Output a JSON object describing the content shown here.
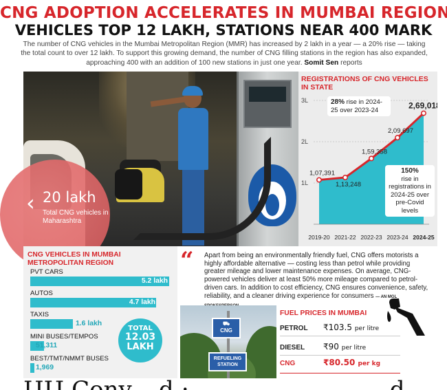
{
  "header": {
    "headline": "CNG ADOPTION ACCELERATES IN MUMBAI REGION",
    "subhead": "VEHICLES TOP 12 LAKH, STATIONS NEAR 400 MARK",
    "intro": "The number of CNG vehicles in the Mumbai Metropolitan Region (MMR) has increased by 2 lakh in a year — a 20% rise — taking the total count to over 12 lakh. To support this growing demand, the number of CNG filling stations in the region has also expanded, approaching 400 with an addition of 100 new stations in just one year.",
    "byline": "Somit Sen",
    "byline_suffix": "reports"
  },
  "stat": {
    "value": "20 lakh",
    "caption": "Total CNG vehicles in Maharashtra"
  },
  "chart_title": "REGISTRATIONS OF CNG VEHICLES IN STATE",
  "chart_data": {
    "type": "area",
    "title": "REGISTRATIONS OF CNG VEHICLES IN STATE",
    "categories": [
      "2019-20",
      "2021-22",
      "2022-23",
      "2023-24",
      "2024-25"
    ],
    "values": [
      107391,
      113248,
      159358,
      209697,
      269018
    ],
    "value_labels": [
      "1,07,391",
      "1,13,248",
      "1,59,358",
      "2,09,697",
      "2,69,018"
    ],
    "yticks": [
      "1L",
      "2L",
      "3L"
    ],
    "ylim": [
      0,
      300000
    ],
    "colors": {
      "line": "#d7262b",
      "area": "#2fbccc"
    }
  },
  "callouts": {
    "rise_pct": "28%",
    "rise_text": "rise in 2024-25 over 2023-24",
    "covid_pct": "150%",
    "covid_text": "rise in registrations in 2024-25 over pre-Covid levels"
  },
  "vehicles": {
    "title": "CNG VEHICLES IN MUMBAI METROPOLITAN REGION",
    "items": [
      {
        "label": "PVT CARS",
        "value": "5.2 lakh",
        "amount": 520000
      },
      {
        "label": "AUTOS",
        "value": "4.7 lakh",
        "amount": 470000
      },
      {
        "label": "TAXIS",
        "value": "1.6 lakh",
        "amount": 160000
      },
      {
        "label": "MINI BUSES/TEMPOS",
        "value": "51,311",
        "amount": 51311
      },
      {
        "label": "BEST/TMT/NMMT BUSES",
        "value": "1,969",
        "amount": 1969
      }
    ],
    "total_label": "TOTAL",
    "total_value": "12.03",
    "total_unit": "LAKH"
  },
  "quote": {
    "text": "Apart from being an environmentally friendly fuel, CNG offers motorists a highly affordable alternative — costing less than petrol while providing greater mileage and lower maintenance expenses. On average, CNG-powered vehicles deliver at least 50% more mileage compared to petrol-driven cars. In addition to cost efficiency, CNG ensures convenience, safety, reliability, and a cleaner driving experience for consumers",
    "source": "— AN MGL SPOKESPERSON"
  },
  "signs": {
    "cng": "CNG",
    "station": "REFUELING STATION"
  },
  "fuel": {
    "title": "FUEL PRICES IN MUMBAI",
    "rows": [
      {
        "name": "PETROL",
        "price": "₹103.5",
        "unit": "per litre"
      },
      {
        "name": "DIESEL",
        "price": "₹90",
        "unit": "per litre"
      },
      {
        "name": "CNG",
        "price": "₹80.50",
        "unit": "per kg"
      }
    ]
  },
  "footer_text": "ЦЦ Сonv.. .d.:..... ........... ....... .d"
}
